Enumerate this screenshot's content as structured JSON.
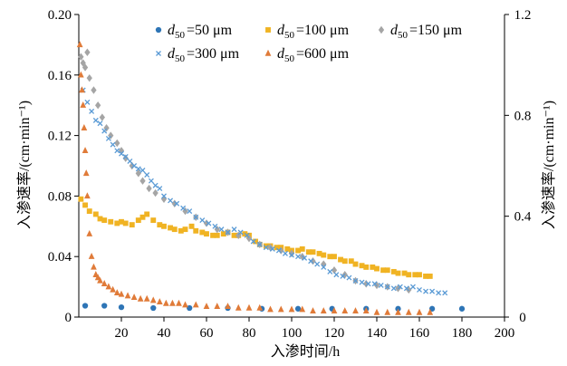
{
  "chart_data": {
    "type": "scatter",
    "xlabel": "入渗时间/h",
    "ylabel_left": "入渗速率/(cm·min⁻¹)",
    "ylabel_right": "入渗速率/(cm·min⁻¹)",
    "xlim": [
      0,
      200
    ],
    "ylim_left": [
      0,
      0.2
    ],
    "ylim_right": [
      0,
      1.2
    ],
    "x_ticks": [
      "20",
      "40",
      "60",
      "80",
      "100",
      "120",
      "140",
      "160",
      "180",
      "200"
    ],
    "y_ticks_left": [
      "0",
      "0.04",
      "0.08",
      "0.12",
      "0.16",
      "0.20"
    ],
    "y_ticks_right": [
      "0",
      "0.4",
      "0.8",
      "1.2"
    ],
    "grid": false,
    "legend_position": "top-right",
    "series": [
      {
        "name": "d50 =50 μm",
        "legend_label": {
          "var": "d",
          "sub": "50",
          "text": "=50 μm"
        },
        "marker": "circle",
        "color": "#2e75b6",
        "axis": "left",
        "x": [
          3,
          12,
          20,
          35,
          52,
          70,
          86,
          103,
          119,
          135,
          150,
          166,
          180
        ],
        "y": [
          0.0075,
          0.0075,
          0.0065,
          0.006,
          0.006,
          0.006,
          0.0055,
          0.0055,
          0.0055,
          0.0055,
          0.0055,
          0.0055,
          0.0055
        ]
      },
      {
        "name": "d50 =100 μm",
        "legend_label": {
          "var": "d",
          "sub": "50",
          "text": "=100 μm"
        },
        "marker": "square",
        "color": "#f0b323",
        "axis": "left",
        "x": [
          1,
          3,
          5,
          8,
          10,
          12,
          15,
          18,
          20,
          22,
          25,
          28,
          30,
          32,
          35,
          38,
          40,
          43,
          45,
          48,
          50,
          53,
          55,
          58,
          60,
          63,
          65,
          68,
          70,
          73,
          75,
          78,
          80,
          83,
          85,
          88,
          90,
          93,
          95,
          98,
          100,
          103,
          105,
          108,
          110,
          113,
          115,
          118,
          120,
          123,
          125,
          128,
          130,
          133,
          135,
          138,
          140,
          143,
          145,
          148,
          150,
          153,
          155,
          158,
          160,
          163,
          165
        ],
        "y": [
          0.078,
          0.074,
          0.07,
          0.068,
          0.065,
          0.064,
          0.063,
          0.062,
          0.063,
          0.062,
          0.061,
          0.064,
          0.066,
          0.068,
          0.064,
          0.061,
          0.06,
          0.059,
          0.058,
          0.057,
          0.058,
          0.06,
          0.057,
          0.056,
          0.055,
          0.054,
          0.054,
          0.055,
          0.056,
          0.054,
          0.054,
          0.055,
          0.054,
          0.05,
          0.048,
          0.047,
          0.047,
          0.046,
          0.046,
          0.045,
          0.044,
          0.044,
          0.045,
          0.043,
          0.043,
          0.042,
          0.041,
          0.04,
          0.04,
          0.038,
          0.037,
          0.037,
          0.035,
          0.034,
          0.033,
          0.033,
          0.032,
          0.031,
          0.031,
          0.03,
          0.029,
          0.029,
          0.028,
          0.028,
          0.028,
          0.027,
          0.027
        ]
      },
      {
        "name": "d50 =150 μm",
        "legend_label": {
          "var": "d",
          "sub": "50",
          "text": "=150 μm"
        },
        "marker": "diamond",
        "color": "#a5a5a5",
        "axis": "left",
        "x": [
          1,
          2,
          3,
          4,
          5,
          7,
          9,
          11,
          13,
          15,
          18,
          20,
          22,
          25,
          28,
          30,
          33,
          36,
          40,
          45,
          50,
          55,
          60,
          65,
          70,
          75,
          80,
          85,
          90,
          95,
          100,
          105,
          110,
          115,
          120,
          125,
          130,
          135,
          140,
          145,
          150,
          155
        ],
        "y": [
          0.172,
          0.168,
          0.165,
          0.175,
          0.158,
          0.15,
          0.14,
          0.132,
          0.125,
          0.12,
          0.115,
          0.11,
          0.105,
          0.1,
          0.095,
          0.09,
          0.085,
          0.082,
          0.078,
          0.075,
          0.07,
          0.066,
          0.062,
          0.058,
          0.056,
          0.054,
          0.052,
          0.048,
          0.046,
          0.044,
          0.042,
          0.04,
          0.037,
          0.035,
          0.031,
          0.028,
          0.024,
          0.022,
          0.021,
          0.02,
          0.019,
          0.018
        ]
      },
      {
        "name": "d50 =300 μm",
        "legend_label": {
          "var": "d",
          "sub": "50",
          "text": "=300 μm"
        },
        "marker": "x",
        "color": "#5b9bd5",
        "axis": "left",
        "x": [
          2,
          4,
          6,
          8,
          10,
          12,
          14,
          16,
          18,
          20,
          22,
          24,
          26,
          28,
          30,
          32,
          34,
          36,
          38,
          40,
          43,
          46,
          49,
          52,
          55,
          58,
          61,
          64,
          67,
          70,
          73,
          76,
          79,
          82,
          85,
          88,
          91,
          94,
          97,
          100,
          103,
          106,
          109,
          112,
          115,
          118,
          121,
          124,
          127,
          130,
          133,
          136,
          139,
          142,
          145,
          148,
          151,
          154,
          157,
          160,
          163,
          166,
          169,
          172
        ],
        "y": [
          0.15,
          0.142,
          0.136,
          0.13,
          0.128,
          0.123,
          0.118,
          0.114,
          0.11,
          0.108,
          0.106,
          0.103,
          0.1,
          0.098,
          0.097,
          0.094,
          0.09,
          0.087,
          0.085,
          0.08,
          0.077,
          0.075,
          0.072,
          0.07,
          0.066,
          0.064,
          0.062,
          0.06,
          0.058,
          0.056,
          0.058,
          0.056,
          0.054,
          0.05,
          0.048,
          0.046,
          0.045,
          0.044,
          0.042,
          0.041,
          0.04,
          0.039,
          0.037,
          0.035,
          0.033,
          0.03,
          0.028,
          0.027,
          0.026,
          0.024,
          0.023,
          0.022,
          0.022,
          0.021,
          0.02,
          0.019,
          0.02,
          0.019,
          0.02,
          0.018,
          0.017,
          0.017,
          0.016,
          0.016
        ]
      },
      {
        "name": "d50 =600 μm",
        "legend_label": {
          "var": "d",
          "sub": "50",
          "text": "=600 μm"
        },
        "marker": "triangle",
        "color": "#e07b39",
        "axis": "left",
        "x": [
          0.5,
          1,
          1.5,
          2,
          2.5,
          3,
          3.5,
          4,
          5,
          6,
          7,
          8,
          9,
          10,
          12,
          14,
          16,
          18,
          20,
          23,
          26,
          29,
          32,
          35,
          38,
          41,
          44,
          47,
          50,
          55,
          60,
          65,
          70,
          75,
          80,
          85,
          90,
          95,
          100,
          105,
          110,
          115,
          120,
          125,
          130,
          135,
          140,
          145,
          150,
          155,
          160,
          165
        ],
        "y": [
          0.18,
          0.16,
          0.15,
          0.14,
          0.125,
          0.11,
          0.095,
          0.08,
          0.055,
          0.04,
          0.033,
          0.028,
          0.026,
          0.024,
          0.022,
          0.02,
          0.018,
          0.016,
          0.015,
          0.014,
          0.013,
          0.012,
          0.012,
          0.011,
          0.01,
          0.009,
          0.009,
          0.009,
          0.008,
          0.008,
          0.007,
          0.007,
          0.007,
          0.006,
          0.006,
          0.006,
          0.005,
          0.005,
          0.005,
          0.005,
          0.004,
          0.004,
          0.004,
          0.004,
          0.004,
          0.004,
          0.003,
          0.003,
          0.003,
          0.003,
          0.003,
          0.003
        ]
      }
    ]
  }
}
